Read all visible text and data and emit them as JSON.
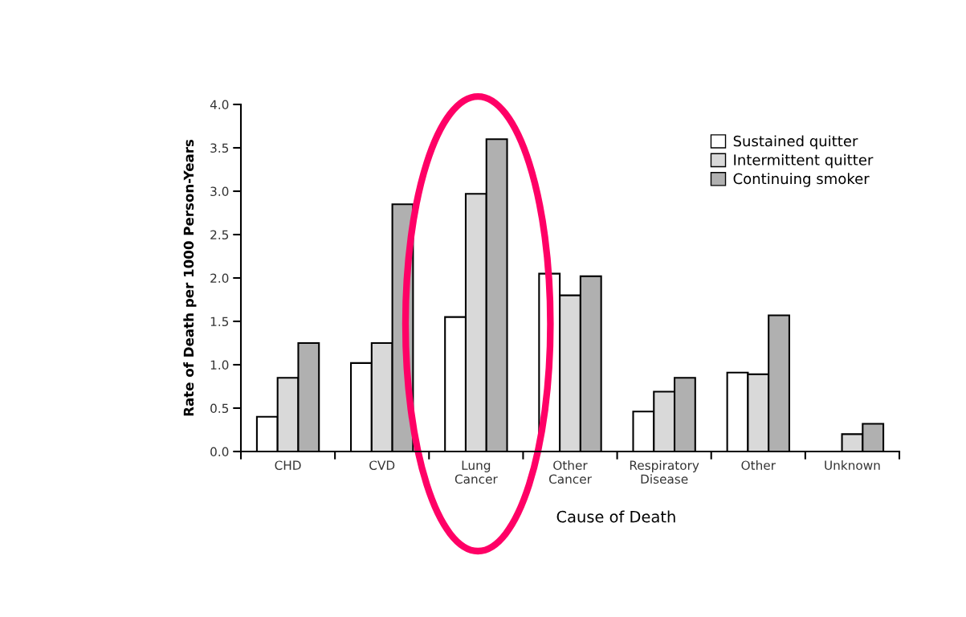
{
  "chart_data": {
    "type": "bar",
    "xlabel": "Cause of Death",
    "ylabel": "Rate of Death per 1000 Person-Years",
    "categories": [
      "CHD",
      "CVD",
      "Lung\nCancer",
      "Other\nCancer",
      "Respiratory\nDisease",
      "Other",
      "Unknown"
    ],
    "series": [
      {
        "name": "Sustained quitter",
        "color": "#ffffff",
        "values": [
          0.4,
          1.02,
          1.55,
          2.05,
          0.46,
          0.91,
          null
        ]
      },
      {
        "name": "Intermittent quitter",
        "color": "#d9d9d9",
        "values": [
          0.85,
          1.25,
          2.97,
          1.8,
          0.69,
          0.89,
          0.2
        ]
      },
      {
        "name": "Continuing smoker",
        "color": "#b0b0b0",
        "values": [
          1.25,
          2.85,
          3.6,
          2.02,
          0.85,
          1.57,
          0.32
        ]
      }
    ],
    "ylim": [
      0,
      4.0
    ],
    "yticks": [
      {
        "value": 0,
        "label": "0.0"
      },
      {
        "value": 0.5,
        "label": "0.5"
      },
      {
        "value": 1,
        "label": "1.0"
      },
      {
        "value": 1.5,
        "label": "1.5"
      },
      {
        "value": 2,
        "label": "2.0"
      },
      {
        "value": 2.5,
        "label": "2.5"
      },
      {
        "value": 3,
        "label": "3.0"
      },
      {
        "value": 3.5,
        "label": "3.5"
      },
      {
        "value": 4,
        "label": "4.0"
      }
    ],
    "grid": false,
    "legend": "top right"
  }
}
